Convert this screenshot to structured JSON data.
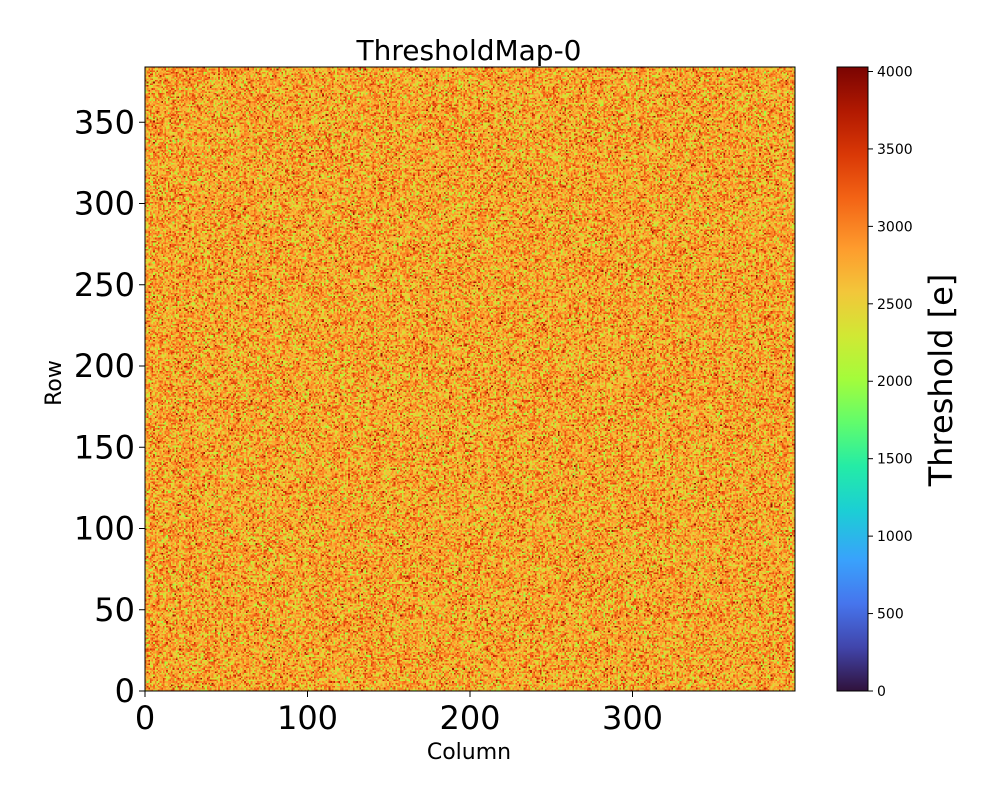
{
  "chart_data": {
    "type": "heatmap",
    "title": "ThresholdMap-0",
    "xlabel": "Column",
    "ylabel": "Row",
    "xlim": [
      0,
      400
    ],
    "ylim": [
      0,
      384
    ],
    "x_ticks": [
      0,
      100,
      200,
      300
    ],
    "y_ticks": [
      0,
      50,
      100,
      150,
      200,
      250,
      300,
      350
    ],
    "colormap": "turbo",
    "colorbar": {
      "label": "Threshold [e]",
      "range": [
        0,
        4029
      ],
      "ticks": [
        0,
        500,
        1000,
        1500,
        2000,
        2500,
        3000,
        3500,
        4000
      ]
    },
    "value_distribution": {
      "typical_center": 2800,
      "typical_spread": 350,
      "min_observed": 1900,
      "max_observed": 3900
    }
  }
}
